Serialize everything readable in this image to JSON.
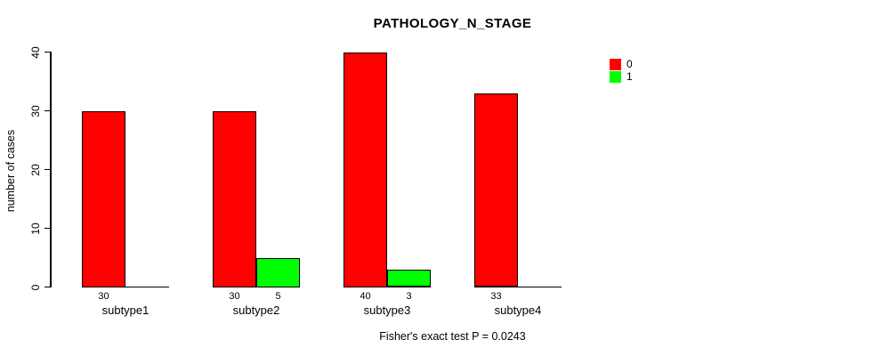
{
  "chart_data": {
    "type": "bar",
    "title": "PATHOLOGY_N_STAGE",
    "categories": [
      "subtype1",
      "subtype2",
      "subtype3",
      "subtype4"
    ],
    "series": [
      {
        "name": "0",
        "color": "#FF0000",
        "values": [
          30,
          30,
          40,
          33
        ]
      },
      {
        "name": "1",
        "color": "#00FF00",
        "values": [
          0,
          5,
          3,
          0
        ]
      }
    ],
    "ylabel": "number of cases",
    "yticks": [
      0,
      10,
      20,
      30,
      40
    ],
    "ylim": [
      0,
      40
    ],
    "grid": false,
    "bar_value_labels_shown": true,
    "legend_position": "top-right",
    "caption": "Fisher's exact test P = 0.0243"
  },
  "colors": {
    "background": "#FFFFFF",
    "axis": "#000000",
    "bar_border": "#000000",
    "text": "#000000"
  }
}
